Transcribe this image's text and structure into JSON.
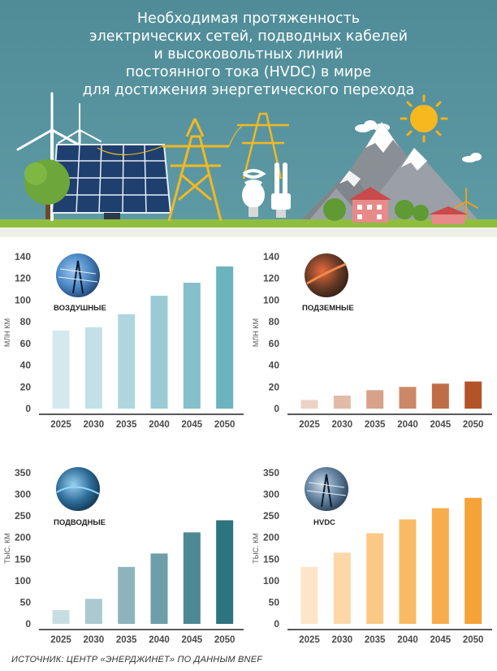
{
  "title": "Необходимая протяженность\nэлектрических сетей, подводных кабелей\nи высоковольтных линий\nпостоянного тока (HVDC) в мире\nдля достижения энергетического перехода",
  "source": "ИСТОЧНИК: ЦЕНТР «ЭНЕРДЖИНЕТ» ПО ДАННЫМ BNEF",
  "chart_data": [
    {
      "type": "bar",
      "name": "ВОЗДУШНЫЕ",
      "ylabel": "МЛН КМ",
      "ylim": [
        0,
        140
      ],
      "yticks": [
        0,
        20,
        40,
        60,
        80,
        100,
        120,
        140
      ],
      "categories": [
        "2025",
        "2030",
        "2035",
        "2040",
        "2045",
        "2050"
      ],
      "values": [
        72,
        75,
        87,
        104,
        116,
        131
      ],
      "colors": [
        "#d4e9ee",
        "#c3e0e6",
        "#afd6de",
        "#9acbd4",
        "#84bfca",
        "#6db3bf"
      ],
      "icon": "power-lines-photo-icon"
    },
    {
      "type": "bar",
      "name": "ПОДЗЕМНЫЕ",
      "ylabel": "МЛН КМ",
      "ylim": [
        0,
        140
      ],
      "yticks": [
        0,
        20,
        40,
        60,
        80,
        100,
        120,
        140
      ],
      "categories": [
        "2025",
        "2030",
        "2035",
        "2040",
        "2045",
        "2050"
      ],
      "values": [
        8,
        12,
        17,
        20,
        23,
        25
      ],
      "colors": [
        "#ecd2c6",
        "#e2bba8",
        "#d7a288",
        "#cc8866",
        "#bf6d45",
        "#b25427"
      ],
      "icon": "underground-cable-photo-icon"
    },
    {
      "type": "bar",
      "name": "ПОДВОДНЫЕ",
      "ylabel": "ТЫС. КМ",
      "ylim": [
        0,
        350
      ],
      "yticks": [
        0,
        50,
        100,
        150,
        200,
        250,
        300,
        350
      ],
      "categories": [
        "2025",
        "2030",
        "2035",
        "2040",
        "2045",
        "2050"
      ],
      "values": [
        32,
        58,
        132,
        163,
        212,
        240
      ],
      "colors": [
        "#c8dde1",
        "#abc9cf",
        "#8db4bd",
        "#6e9eaa",
        "#4e8896",
        "#2e7380"
      ],
      "icon": "subsea-cable-photo-icon"
    },
    {
      "type": "bar",
      "name": "HVDC",
      "ylabel": "ТЫС. КМ",
      "ylim": [
        0,
        350
      ],
      "yticks": [
        0,
        50,
        100,
        150,
        200,
        250,
        300,
        350
      ],
      "categories": [
        "2025",
        "2030",
        "2035",
        "2040",
        "2045",
        "2050"
      ],
      "values": [
        132,
        165,
        210,
        242,
        268,
        292
      ],
      "colors": [
        "#fde6c8",
        "#fcd8a8",
        "#fbc986",
        "#f9ba66",
        "#f7ad4c",
        "#f5a236"
      ],
      "icon": "pylon-photo-icon"
    }
  ]
}
